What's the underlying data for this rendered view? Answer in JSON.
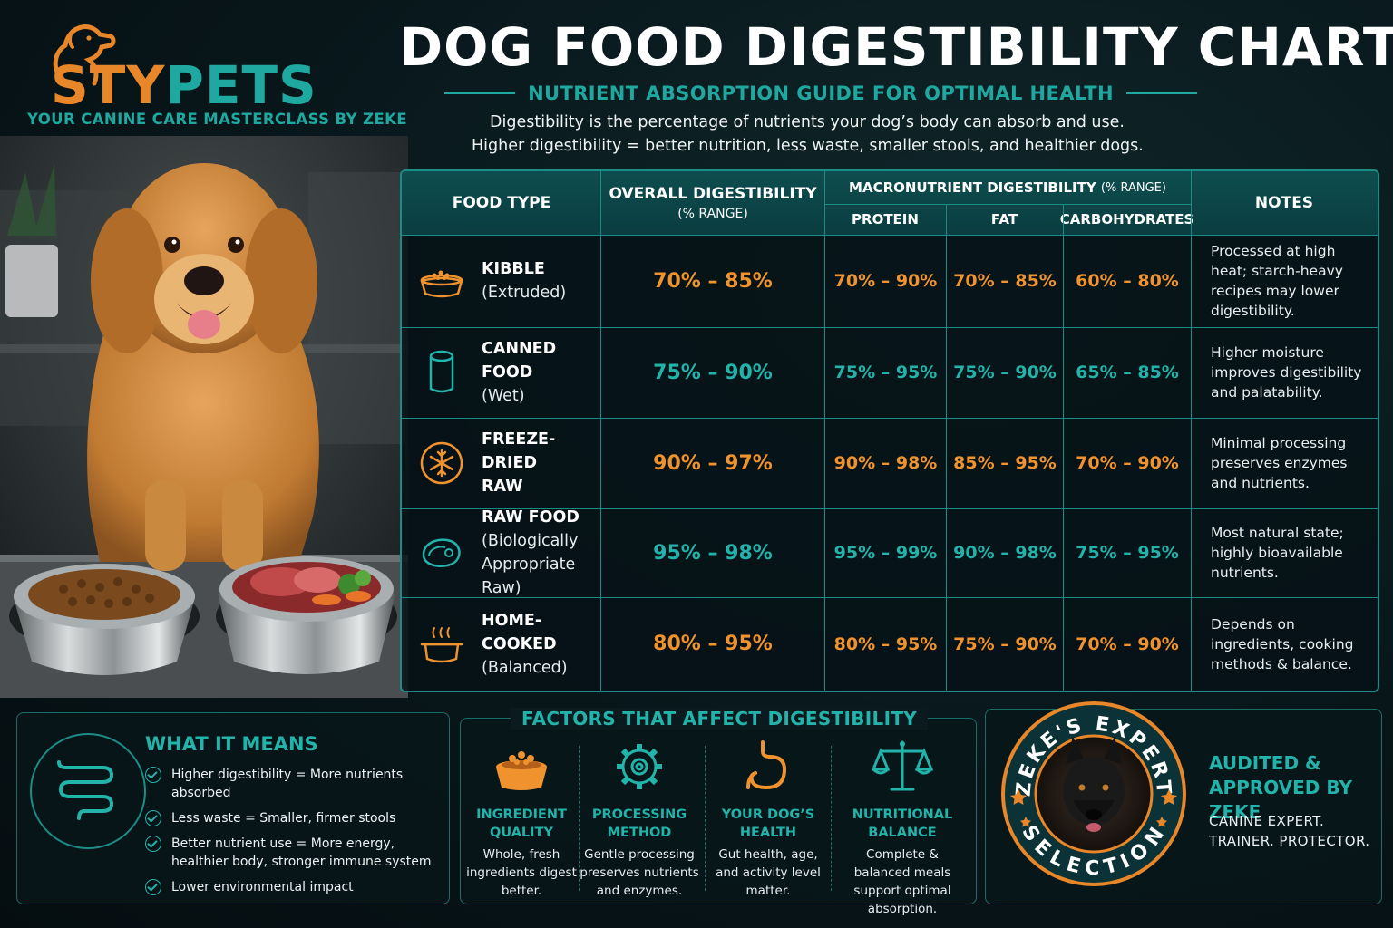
{
  "brand": {
    "name_part1": "STY",
    "name_part2": "PETS",
    "tagline": "YOUR CANINE CARE MASTERCLASS BY ZEKE"
  },
  "header": {
    "title": "DOG FOOD DIGESTIBILITY CHART",
    "subtitle": "NUTRIENT ABSORPTION GUIDE FOR OPTIMAL HEALTH",
    "intro_line1": "Digestibility is the percentage of nutrients your dog’s body can absorb and use.",
    "intro_line2": "Higher digestibility = better nutrition, less waste, smaller stools, and healthier dogs."
  },
  "table": {
    "col_food": "FOOD TYPE",
    "col_overall": "OVERALL DIGESTIBILITY",
    "col_overall_sub": "(% RANGE)",
    "col_macro": "MACRONUTRIENT DIGESTIBILITY",
    "col_macro_sub": "(% RANGE)",
    "col_protein": "PROTEIN",
    "col_fat": "FAT",
    "col_carbs": "CARBOHYDRATES",
    "col_notes": "NOTES",
    "rows": [
      {
        "name": "KIBBLE",
        "sub": "(Extruded)",
        "icon": "kibble-bowl-icon",
        "overall": "70% – 85%",
        "protein": "70% – 90%",
        "fat": "70% – 85%",
        "carbs": "60% – 80%",
        "note": "Processed at high heat; starch-heavy recipes may lower digestibility.",
        "color": "orange"
      },
      {
        "name": "CANNED FOOD",
        "sub": "(Wet)",
        "icon": "can-icon",
        "overall": "75% – 90%",
        "protein": "75% – 95%",
        "fat": "75% – 90%",
        "carbs": "65% – 85%",
        "note": "Higher moisture improves digestibility and palatability.",
        "color": "teal"
      },
      {
        "name": "FREEZE-DRIED",
        "sub": "RAW",
        "icon": "snowflake-icon",
        "overall": "90% – 97%",
        "protein": "90% – 98%",
        "fat": "85% – 95%",
        "carbs": "70% – 90%",
        "note": "Minimal processing preserves enzymes and nutrients.",
        "color": "orange"
      },
      {
        "name": "RAW FOOD",
        "sub": "(Biologically Appropriate Raw)",
        "icon": "steak-icon",
        "overall": "95% – 98%",
        "protein": "95% – 99%",
        "fat": "90% – 98%",
        "carbs": "75% – 95%",
        "note": "Most natural state; highly bioavailable nutrients.",
        "color": "teal"
      },
      {
        "name": "HOME-COOKED",
        "sub": "(Balanced)",
        "icon": "cooking-pot-icon",
        "overall": "80% – 95%",
        "protein": "80% – 95%",
        "fat": "75% – 90%",
        "carbs": "70% – 90%",
        "note": "Depends on ingredients, cooking methods & balance.",
        "color": "orange"
      }
    ]
  },
  "meaning": {
    "title": "WHAT IT MEANS",
    "items": [
      "Higher digestibility = More nutrients absorbed",
      "Less waste = Smaller, firmer stools",
      "Better nutrient use = More energy, healthier body, stronger immune system",
      "Lower environmental impact"
    ]
  },
  "factors": {
    "title": "FACTORS THAT AFFECT DIGESTIBILITY",
    "items": [
      {
        "name": "INGREDIENT QUALITY",
        "desc": "Whole, fresh ingredients digest better.",
        "icon": "food-bowl-icon"
      },
      {
        "name": "PROCESSING METHOD",
        "desc": "Gentle processing preserves nutrients and enzymes.",
        "icon": "gear-icon"
      },
      {
        "name": "YOUR DOG’S HEALTH",
        "desc": "Gut health, age, and activity level matter.",
        "icon": "stomach-icon"
      },
      {
        "name": "NUTRITIONAL BALANCE",
        "desc": "Complete & balanced meals support optimal absorption.",
        "icon": "scale-icon"
      }
    ]
  },
  "expert": {
    "seal_top": "ZEKE'S EXPERT",
    "seal_bottom": "SELECTION",
    "audited": "AUDITED & APPROVED BY ZEKE",
    "cred_line1": "CANINE EXPERT.",
    "cred_line2": "TRAINER. PROTECTOR."
  },
  "colors": {
    "orange": "#f0922e",
    "teal": "#22b3aa"
  }
}
